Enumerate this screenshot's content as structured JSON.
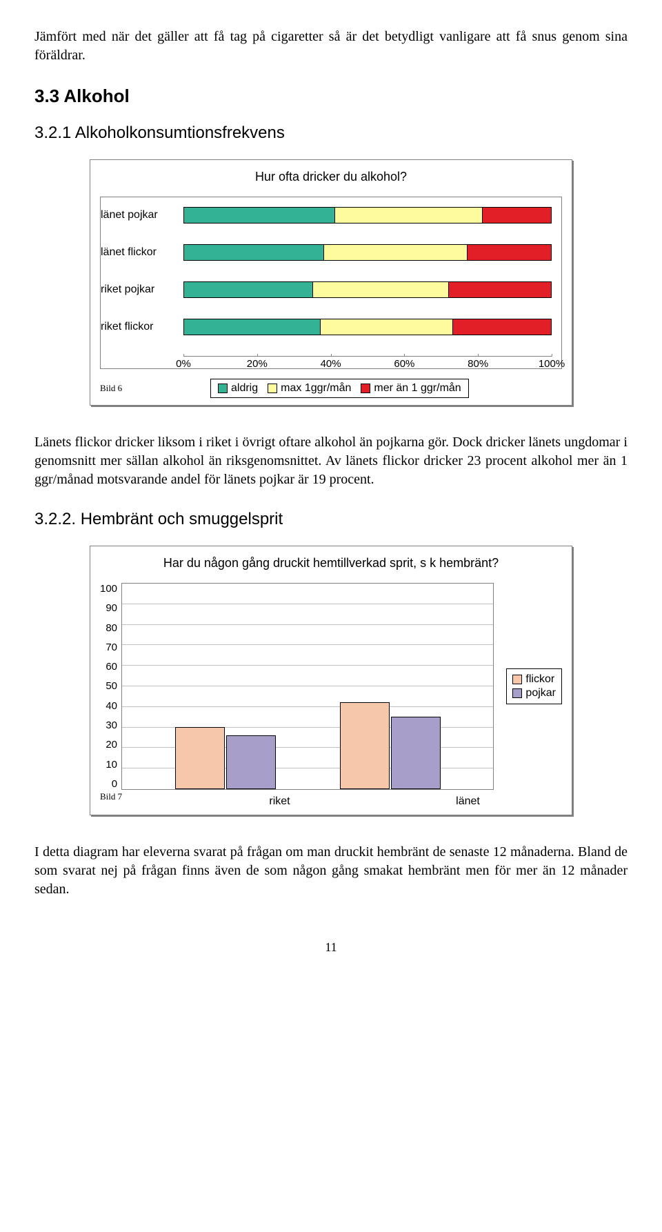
{
  "intro_paragraph": "Jämfört med när det gäller att få tag på cigaretter så är det betydligt vanligare att få snus genom sina föräldrar.",
  "section_3_3": "3.3 Alkohol",
  "subsection_3_2_1": "3.2.1 Alkoholkonsumtionsfrekvens",
  "subsection_3_2_2": "3.2.2. Hembränt och smuggelsprit",
  "chart1": {
    "type": "stacked-horizontal-bar",
    "title": "Hur ofta dricker du alkohol?",
    "bild_label": "Bild 6",
    "categories": [
      "länet pojkar",
      "länet flickor",
      "riket pojkar",
      "riket flickor"
    ],
    "series_labels": [
      "aldrig",
      "max 1ggr/mån",
      "mer än 1 ggr/mån"
    ],
    "series_colors": [
      "#33b295",
      "#fdfb9e",
      "#e21e26"
    ],
    "data": [
      [
        41,
        40,
        19
      ],
      [
        38,
        39,
        23
      ],
      [
        35,
        37,
        28
      ],
      [
        37,
        36,
        27
      ]
    ],
    "xticks": [
      "0%",
      "20%",
      "40%",
      "60%",
      "80%",
      "100%"
    ],
    "plot_border_color": "#808080"
  },
  "paragraph_after_chart1": "Länets flickor dricker liksom i riket i övrigt oftare alkohol än pojkarna gör. Dock dricker länets ungdomar i genomsnitt mer sällan alkohol än riksgenomsnittet. Av länets flickor dricker 23 procent alkohol mer än 1 ggr/månad motsvarande andel för länets pojkar är 19 procent.",
  "chart2": {
    "type": "grouped-vertical-bar",
    "title": "Har du någon gång druckit hemtillverkad sprit, s k hembränt?",
    "bild_label": "Bild 7",
    "categories": [
      "riket",
      "länet"
    ],
    "series_labels": [
      "flickor",
      "pojkar"
    ],
    "series_colors": [
      "#f7c7a9",
      "#a79ec9"
    ],
    "data": {
      "riket": {
        "flickor": 30,
        "pojkar": 26
      },
      "länet": {
        "flickor": 42,
        "pojkar": 35
      }
    },
    "yticks": [
      "100",
      "90",
      "80",
      "70",
      "60",
      "50",
      "40",
      "30",
      "20",
      "10",
      "0"
    ],
    "ymax": 100,
    "grid_color": "#c0c0c0",
    "plot_border_color": "#808080"
  },
  "paragraph_after_chart2": "I detta diagram har eleverna svarat på frågan om man druckit hembränt de senaste 12 månaderna. Bland de som svarat nej på frågan finns även de som någon gång smakat hembränt men för mer än 12 månader sedan.",
  "page_number": "11"
}
